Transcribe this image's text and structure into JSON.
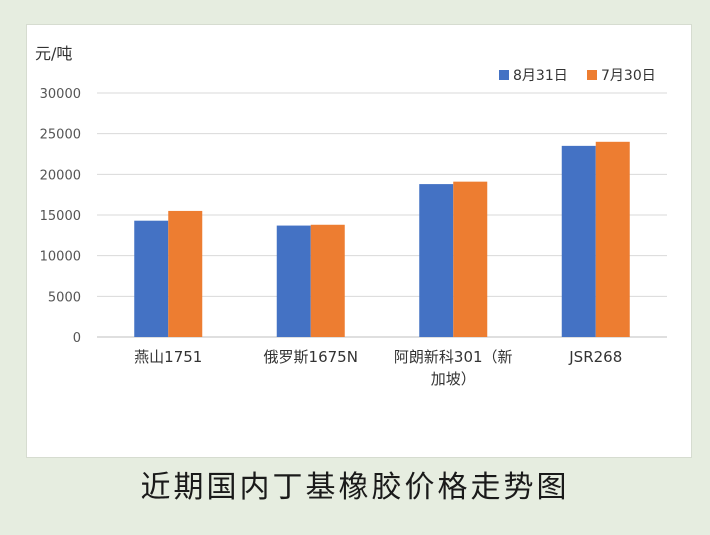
{
  "caption": "近期国内丁基橡胶价格走势图",
  "chart_data": {
    "type": "bar",
    "ylabel": "元/吨",
    "ylim": [
      0,
      30000
    ],
    "yticks": [
      0,
      5000,
      10000,
      15000,
      20000,
      25000,
      30000
    ],
    "categories": [
      [
        "燕山1751"
      ],
      [
        "俄罗斯1675N"
      ],
      [
        "阿朗新科301（新",
        "加坡）"
      ],
      [
        "JSR268"
      ]
    ],
    "series": [
      {
        "name": "8月31日",
        "color": "#4472c4",
        "values": [
          14300,
          13700,
          18800,
          23500
        ]
      },
      {
        "name": "7月30日",
        "color": "#ed7d31",
        "values": [
          15500,
          13800,
          19100,
          24000
        ]
      }
    ],
    "legend": "top-right",
    "grid": true
  }
}
